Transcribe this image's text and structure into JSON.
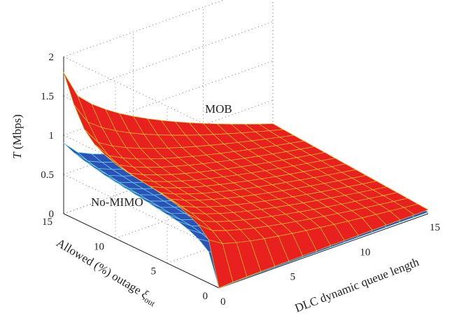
{
  "chart_data": {
    "type": "surface",
    "zlabel_var": "T",
    "zlabel_unit": " (Mbps)",
    "xlabel": "DLC dynamic queue length",
    "ylabel_text": "Allowed (%) outage ",
    "ylabel_sym": "ξ",
    "ylabel_sub": "out",
    "x_ticks": [
      "0",
      "5",
      "10",
      "15"
    ],
    "y_ticks": [
      "0",
      "5",
      "10",
      "15"
    ],
    "z_ticks": [
      "0",
      "0.5",
      "1",
      "1.5",
      "2"
    ],
    "xlim": [
      0,
      15
    ],
    "ylim": [
      0,
      15
    ],
    "zlim": [
      0,
      2
    ],
    "grid": true,
    "series": [
      {
        "name": "MOB",
        "color": "#e8201e",
        "mesh_color": "#f0c230",
        "x": [
          0,
          1,
          2,
          3,
          4,
          5,
          6,
          7,
          8,
          9,
          10,
          11,
          12,
          13,
          14,
          15
        ],
        "y": [
          0,
          1,
          2,
          3,
          4,
          5,
          6,
          7,
          8,
          9,
          10,
          11,
          12,
          13,
          14,
          15
        ],
        "z_at_x0": [
          0.0,
          0.55,
          0.68,
          0.75,
          0.8,
          0.83,
          0.86,
          0.88,
          0.9,
          0.92,
          0.95,
          1.0,
          1.07,
          1.2,
          1.45,
          1.8
        ],
        "z_at_x15": [
          0.05,
          0.06,
          0.07,
          0.08,
          0.09,
          0.1,
          0.11,
          0.12,
          0.13,
          0.14,
          0.15,
          0.16,
          0.17,
          0.18,
          0.19,
          0.2
        ]
      },
      {
        "name": "No-MIMO",
        "color": "#2a52b8",
        "mesh_color": "#6fd8e0",
        "x": [
          0,
          1,
          2,
          3,
          4,
          5,
          6,
          7,
          8,
          9,
          10,
          11,
          12,
          13,
          14,
          15
        ],
        "y": [
          0,
          1,
          2,
          3,
          4,
          5,
          6,
          7,
          8,
          9,
          10,
          11,
          12,
          13,
          14,
          15
        ],
        "z_at_x0": [
          0.0,
          0.4,
          0.5,
          0.56,
          0.6,
          0.62,
          0.64,
          0.66,
          0.68,
          0.7,
          0.72,
          0.74,
          0.77,
          0.8,
          0.84,
          0.9
        ],
        "z_at_x15": [
          0.02,
          0.025,
          0.03,
          0.035,
          0.04,
          0.045,
          0.05,
          0.055,
          0.06,
          0.065,
          0.07,
          0.075,
          0.08,
          0.085,
          0.09,
          0.1
        ]
      }
    ]
  }
}
